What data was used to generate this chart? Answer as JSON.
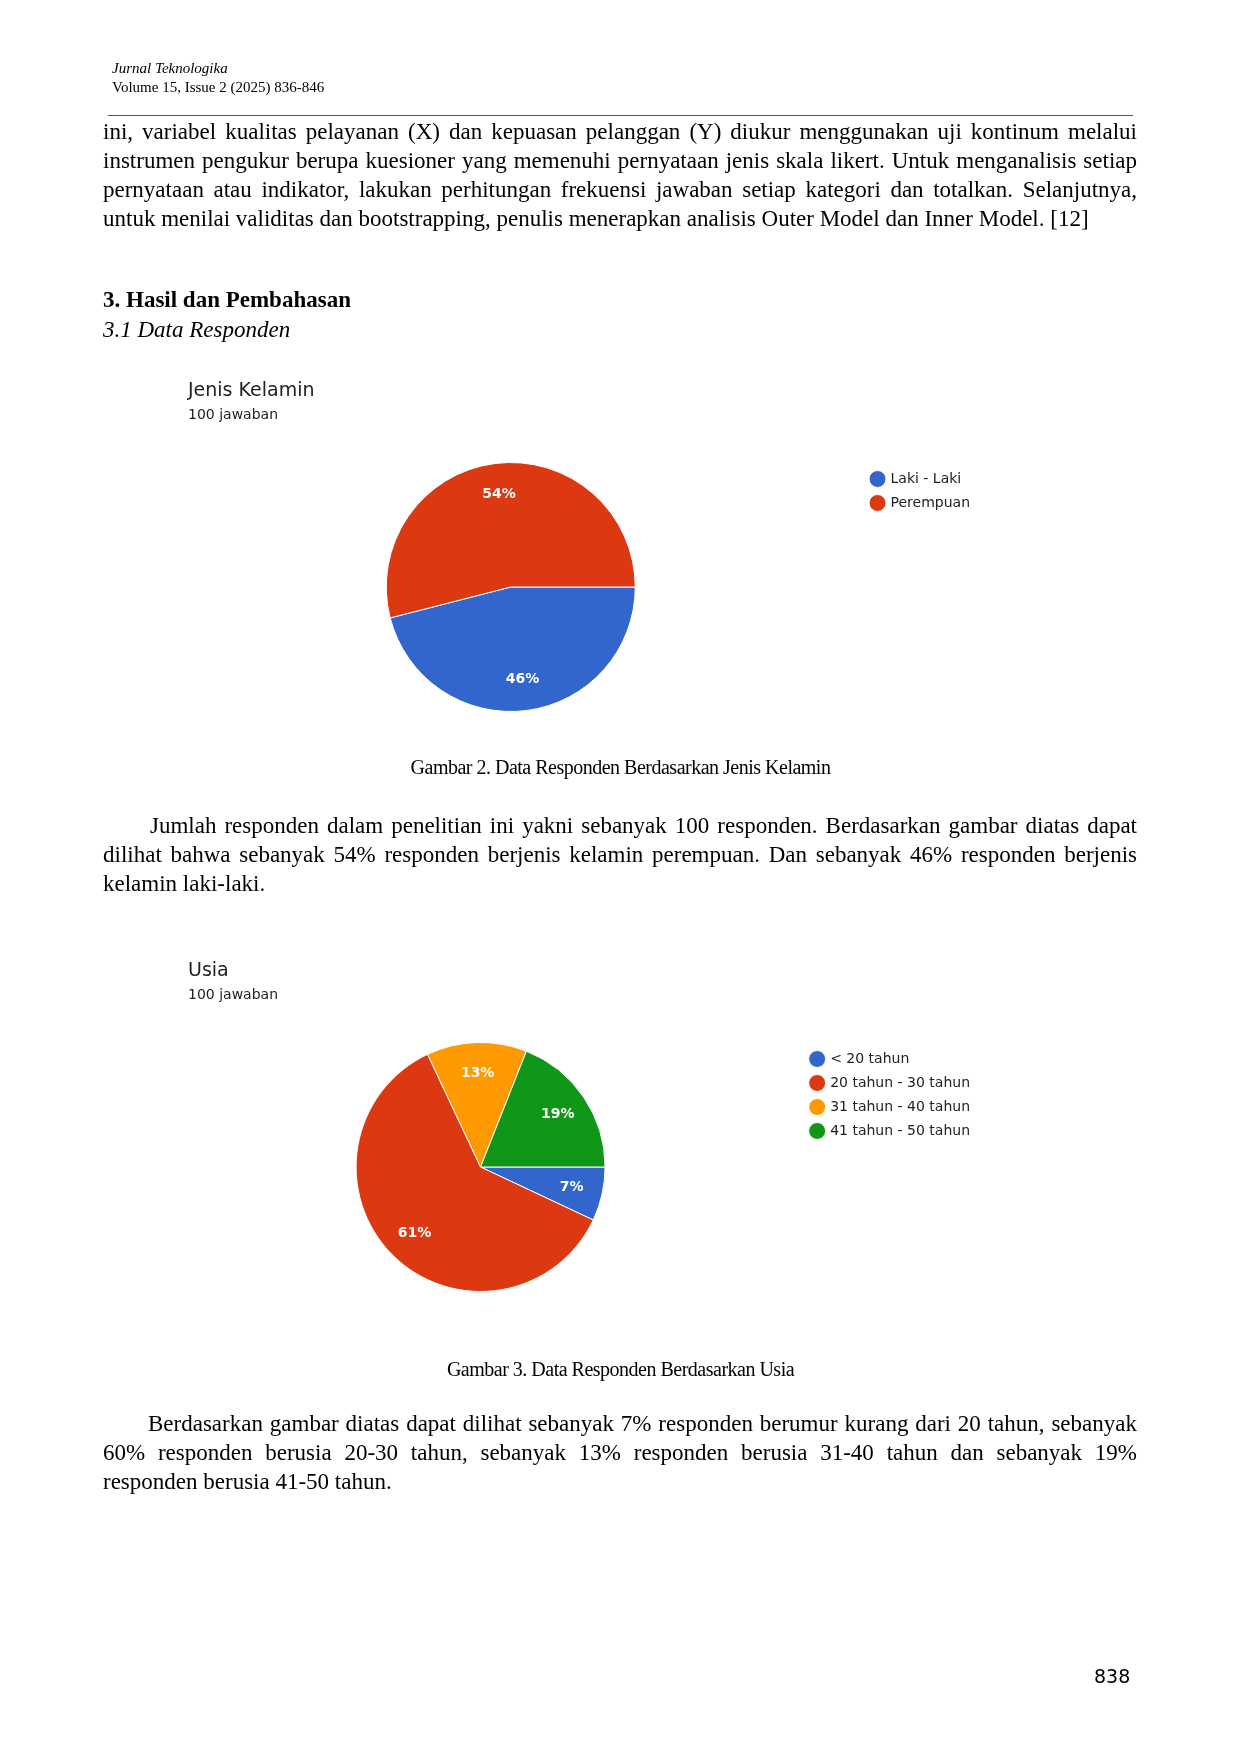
{
  "chart_data": [
    {
      "type": "pie",
      "title": "Jenis Kelamin",
      "subtitle": "100 jawaban",
      "categories": [
        "Laki - Laki",
        "Perempuan"
      ],
      "values": [
        46,
        54
      ],
      "colors": [
        "#3366cc",
        "#dc3912"
      ],
      "value_labels": [
        "46%",
        "54%"
      ],
      "legend": "top right",
      "annotations": [
        "Jurnal Teknologika",
        "Volume 15, Issue 2 (2025) 836-846",
        "ini, variabel kualitas pelayanan (X) dan kepuasan pelanggan (Y) diukur menggunakan uji kontinum melalui  instrumen pengukur berupa kuesioner yang memenuhi pernyataan jenis skala likert. Untuk menganalisis setiap pernyataan atau indikator, lakukan perhitungan frekuensi jawaban setiap kategori dan totalkan. Selanjutnya, untuk menilai validitas dan bootstrapping, penulis menerapkan analisis Outer Model dan Inner Model. [12]",
        "3.  Hasil dan Pembahasan",
        "3.1  Data Responden",
        "Gambar 2. Data Responden Berdasarkan Jenis Kelamin",
        "Jumlah responden dalam penelitian ini yakni sebanyak 100 responden. Berdasarkan gambar diatas dapat dilihat bahwa sebanyak 54% responden berjenis kelamin perempuan. Dan sebanyak 46% responden berjenis kelamin laki-laki."
      ]
    },
    {
      "type": "pie",
      "title": "Usia",
      "subtitle": "100 jawaban",
      "categories": [
        "< 20 tahun",
        "20 tahun - 30 tahun",
        "31 tahun - 40 tahun",
        "41 tahun - 50 tahun"
      ],
      "values": [
        7,
        61,
        13,
        19
      ],
      "colors": [
        "#3366cc",
        "#dc3912",
        "#ff9900",
        "#109618"
      ],
      "value_labels": [
        "7%",
        "61%",
        "13%",
        "19%"
      ],
      "legend": "top right",
      "annotations": [
        "Gambar 3. Data Responden Berdasarkan Usia",
        "Berdasarkan gambar diatas dapat dilihat sebanyak 7% responden berumur kurang dari 20 tahun, sebanyak 60% responden berusia 20-30 tahun, sebanyak 13% responden berusia 31-40 tahun dan sebanyak 19% responden berusia 41-50 tahun.",
        "838"
      ]
    }
  ]
}
